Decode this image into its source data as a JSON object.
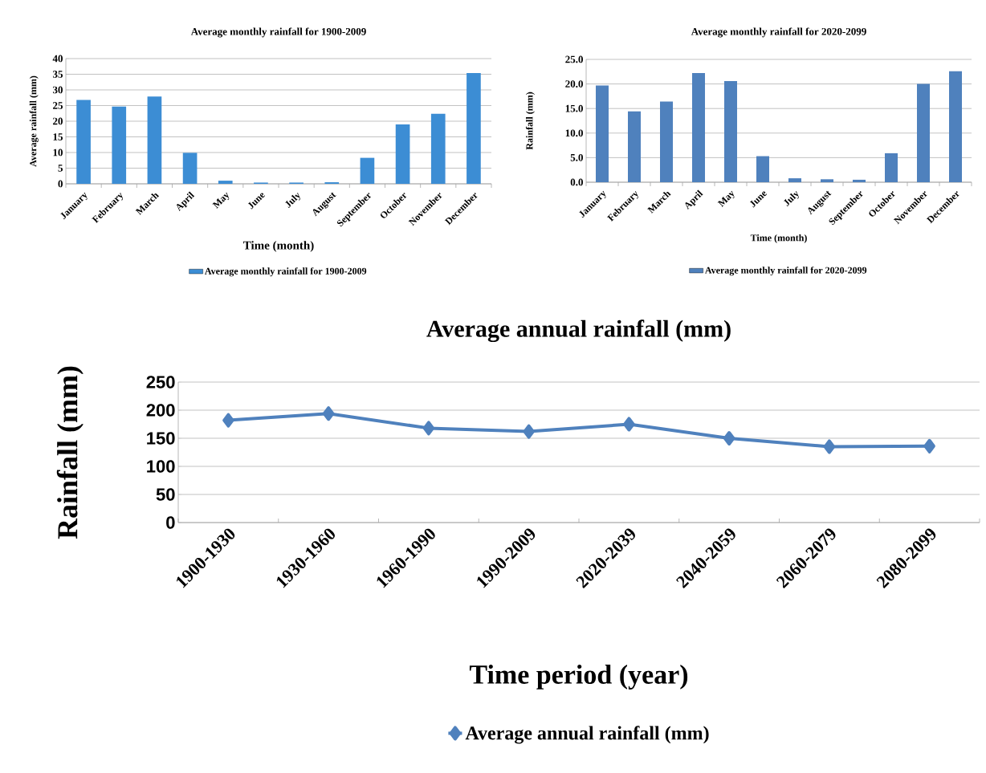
{
  "chart_data": [
    {
      "type": "bar",
      "title": "Average monthly rainfall for 1900-2009",
      "xlabel": "Time (month)",
      "ylabel": "Average rainfall (mm)",
      "categories": [
        "January",
        "February",
        "March",
        "April",
        "May",
        "June",
        "July",
        "August",
        "September",
        "October",
        "November",
        "December"
      ],
      "series": [
        {
          "name": "Average monthly rainfall for 1900-2009",
          "color": "#3c8dd4",
          "values": [
            26.8,
            24.7,
            27.9,
            9.9,
            1.0,
            0.4,
            0.4,
            0.5,
            8.3,
            19.0,
            22.4,
            35.4
          ]
        }
      ],
      "ylim": [
        0,
        40
      ],
      "yticks": [
        0,
        5,
        10,
        15,
        20,
        25,
        30,
        35,
        40
      ],
      "grid": "y",
      "legend": "bottom"
    },
    {
      "type": "bar",
      "title": "Average monthly rainfall for 2020-2099",
      "xlabel": "Time (month)",
      "ylabel": "Rainfall (mm)",
      "categories": [
        "January",
        "February",
        "March",
        "April",
        "May",
        "June",
        "July",
        "August",
        "September",
        "October",
        "November",
        "December"
      ],
      "series": [
        {
          "name": "Average monthly rainfall for 2020-2099",
          "color": "#4f81bd",
          "values": [
            19.7,
            14.4,
            16.4,
            22.2,
            20.6,
            5.3,
            0.8,
            0.6,
            0.5,
            5.9,
            20.0,
            22.6
          ]
        }
      ],
      "ylim": [
        0,
        25
      ],
      "yticks": [
        {
          "value": 0,
          "label": "0.0"
        },
        {
          "value": 5,
          "label": "5.0"
        },
        {
          "value": 10,
          "label": "10.0"
        },
        {
          "value": 15,
          "label": "15.0"
        },
        {
          "value": 20,
          "label": "20.0"
        },
        {
          "value": 25,
          "label": "25.0"
        }
      ],
      "grid": "y",
      "legend": "bottom"
    },
    {
      "type": "line",
      "title": "Average annual rainfall (mm)",
      "xlabel": "Time period (year)",
      "ylabel": "Rainfall (mm)",
      "categories": [
        "1900-1930",
        "1930-1960",
        "1960-1990",
        "1990-2009",
        "2020-2039",
        "2040-2059",
        "2060-2079",
        "2080-2099"
      ],
      "series": [
        {
          "name": "Average annual rainfall (mm)",
          "color": "#4f81bd",
          "values": [
            182,
            194,
            168,
            162,
            175,
            150,
            135,
            136
          ]
        }
      ],
      "ylim": [
        0,
        250
      ],
      "yticks": [
        0,
        50,
        100,
        150,
        200,
        250
      ],
      "grid": "y",
      "legend": "bottom",
      "marker": "diamond",
      "line_style": "solid"
    }
  ]
}
